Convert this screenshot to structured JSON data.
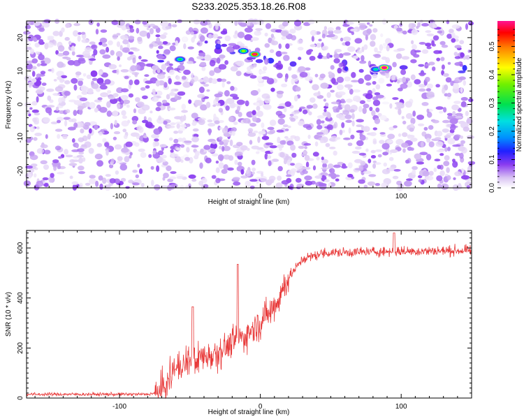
{
  "title": "S233.2025.353.18.26.R08",
  "chart_data": [
    {
      "type": "heatmap",
      "xlabel": "Height of straight line (km)",
      "ylabel": "Frequency (Hz)",
      "xlim": [
        -166,
        150
      ],
      "ylim": [
        -25,
        25
      ],
      "xticks": [
        -100,
        0,
        100
      ],
      "yticks": [
        -20,
        -10,
        0,
        10,
        20
      ],
      "colorbar": {
        "label": "Normalized spectral amplitude",
        "range": [
          0,
          0.59
        ],
        "ticks": [
          0,
          0.1,
          0.2,
          0.3,
          0.4,
          0.5
        ],
        "colormap": "white-purple-blue-cyan-green-yellow-red-magenta"
      },
      "band": {
        "description_free": true,
        "points": [
          {
            "x": -75,
            "y": 13
          },
          {
            "x": -55,
            "y": 14
          },
          {
            "x": -40,
            "y": 17
          },
          {
            "x": -20,
            "y": 16
          },
          {
            "x": -10,
            "y": 14.5
          },
          {
            "x": 20,
            "y": 13
          },
          {
            "x": 60,
            "y": 11.5
          },
          {
            "x": 90,
            "y": 11
          },
          {
            "x": 150,
            "y": 10.5
          }
        ],
        "hotspots": [
          {
            "x": -57,
            "y": 13.5,
            "value": 0.17
          },
          {
            "x": -12,
            "y": 16,
            "value": 0.22
          },
          {
            "x": -4,
            "y": 15,
            "value": 0.37
          },
          {
            "x": 82,
            "y": 10.5,
            "value": 0.15
          },
          {
            "x": 88,
            "y": 11,
            "value": 0.42
          }
        ]
      }
    },
    {
      "type": "line",
      "xlabel": "Height of straight line (km)",
      "ylabel": "SNR (10 * v/v)",
      "xlim": [
        -166,
        150
      ],
      "ylim": [
        0,
        670
      ],
      "xticks": [
        -100,
        0,
        100
      ],
      "yticks": [
        0,
        200,
        400,
        600
      ],
      "color": "#e83a3a",
      "trend": [
        {
          "x": -166,
          "y": 15
        },
        {
          "x": -80,
          "y": 15
        },
        {
          "x": -70,
          "y": 25
        },
        {
          "x": -62,
          "y": 110
        },
        {
          "x": -50,
          "y": 150
        },
        {
          "x": -35,
          "y": 175
        },
        {
          "x": -20,
          "y": 215
        },
        {
          "x": -10,
          "y": 255
        },
        {
          "x": 0,
          "y": 300
        },
        {
          "x": 10,
          "y": 370
        },
        {
          "x": 20,
          "y": 480
        },
        {
          "x": 30,
          "y": 555
        },
        {
          "x": 45,
          "y": 580
        },
        {
          "x": 80,
          "y": 585
        },
        {
          "x": 150,
          "y": 590
        }
      ],
      "spikes": [
        {
          "x": -48,
          "y": 365
        },
        {
          "x": -16,
          "y": 535
        },
        {
          "x": 95,
          "y": 660
        }
      ]
    }
  ]
}
